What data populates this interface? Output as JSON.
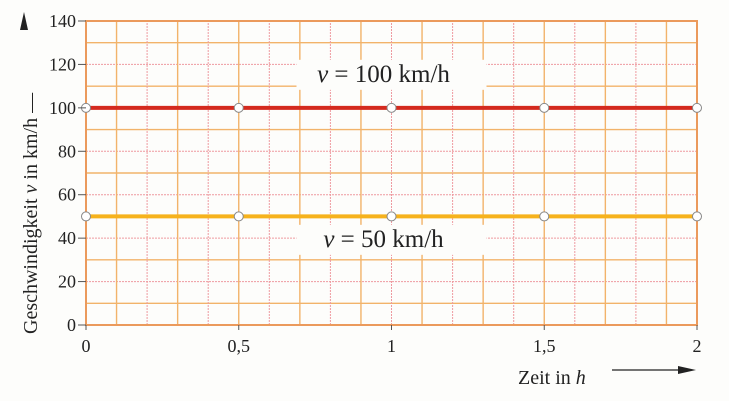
{
  "chart_data": {
    "type": "line",
    "xlabel": "Zeit in h",
    "ylabel": "Geschwindigkeit v in km/h",
    "xlim": [
      0,
      2
    ],
    "ylim": [
      0,
      140
    ],
    "x_ticks": [
      0,
      0.5,
      1,
      1.5,
      2
    ],
    "x_tick_labels": [
      "0",
      "0,5",
      "1",
      "1,5",
      "2"
    ],
    "y_ticks": [
      0,
      20,
      40,
      60,
      80,
      100,
      120,
      140
    ],
    "y_tick_labels": [
      "0",
      "20",
      "40",
      "60",
      "80",
      "100",
      "120",
      "140"
    ],
    "grid": true,
    "series": [
      {
        "x": [
          0,
          0.5,
          1,
          1.5,
          2
        ],
        "y": [
          100,
          100,
          100,
          100,
          100
        ],
        "color": "#d42a1e"
      },
      {
        "x": [
          0,
          0.5,
          1,
          1.5,
          2
        ],
        "y": [
          50,
          50,
          50,
          50,
          50
        ],
        "color": "#f6b21c"
      }
    ],
    "annotations": [
      {
        "text": "v = 100 km/h",
        "x": 1,
        "y": 112
      },
      {
        "text": "v = 50 km/h",
        "x": 1,
        "y": 36
      }
    ],
    "colors": {
      "grid_major": "#f2b36a",
      "grid_minor": "#ee9aa0",
      "frame": "#eb9a5c"
    }
  }
}
